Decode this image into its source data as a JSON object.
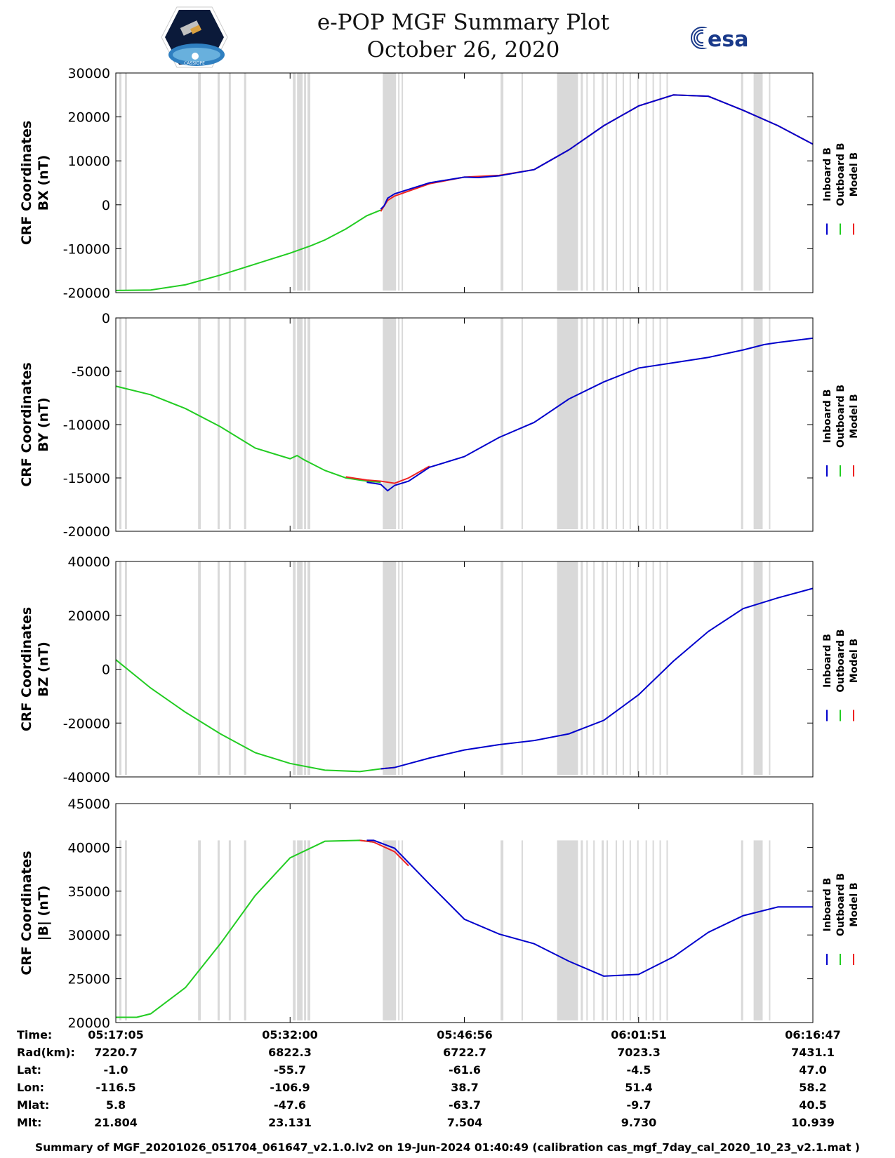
{
  "header": {
    "title_line1": "e-POP MGF Summary Plot",
    "title_line2": "October 26, 2020",
    "logo_left_text": "CASSIOPE",
    "logo_right_text": "esa"
  },
  "colors": {
    "inboard": "#0000cc",
    "outboard": "#22cc22",
    "model": "#ee2222",
    "shade": "#d9d9d9"
  },
  "chart_data": [
    {
      "type": "line",
      "ylabel_line1": "CRF Coordinates",
      "ylabel_line2": "BX (nT)",
      "ylim": [
        -20000,
        30000
      ],
      "yticks": [
        "30000",
        "20000",
        "10000",
        "0",
        "-10000",
        "-20000"
      ],
      "ytick_values": [
        30000,
        20000,
        10000,
        0,
        -10000,
        -20000
      ],
      "legend": [
        "Inboard B",
        "Outboard B",
        "Model B"
      ],
      "series": [
        {
          "name": "Outboard B",
          "color_key": "outboard",
          "x": [
            0,
            0.05,
            0.1,
            0.15,
            0.2,
            0.25,
            0.28,
            0.3,
            0.33,
            0.36,
            0.38
          ],
          "y": [
            -19500,
            -19400,
            -18200,
            -16000,
            -13500,
            -11000,
            -9300,
            -8000,
            -5500,
            -2500,
            -1200
          ]
        },
        {
          "name": "Model B",
          "color_key": "model",
          "x": [
            0.38,
            0.39,
            0.4,
            0.45,
            0.5,
            0.55,
            0.6,
            0.65,
            0.7,
            0.75,
            0.8,
            0.85,
            0.9,
            0.95,
            1.0
          ],
          "y": [
            -1500,
            1000,
            2000,
            4800,
            6300,
            6700,
            8000,
            12500,
            18000,
            22500,
            25000,
            24700,
            21500,
            18000,
            13800
          ]
        },
        {
          "name": "Inboard B",
          "color_key": "inboard",
          "x": [
            0.38,
            0.385,
            0.39,
            0.4,
            0.45,
            0.5,
            0.52,
            0.55,
            0.6,
            0.65,
            0.7,
            0.75,
            0.8,
            0.85,
            0.9,
            0.95,
            1.0
          ],
          "y": [
            -1000,
            -200,
            1500,
            2500,
            5000,
            6300,
            6200,
            6600,
            8000,
            12500,
            18000,
            22500,
            25000,
            24700,
            21500,
            18000,
            13800
          ]
        }
      ]
    },
    {
      "type": "line",
      "ylabel_line1": "CRF Coordinates",
      "ylabel_line2": "BY (nT)",
      "ylim": [
        -20000,
        0
      ],
      "yticks": [
        "0",
        "-5000",
        "-10000",
        "-15000",
        "-20000"
      ],
      "ytick_values": [
        0,
        -5000,
        -10000,
        -15000,
        -20000
      ],
      "legend": [
        "Inboard B",
        "Outboard B",
        "Model B"
      ],
      "series": [
        {
          "name": "Outboard B",
          "color_key": "outboard",
          "x": [
            0,
            0.05,
            0.1,
            0.15,
            0.2,
            0.25,
            0.26,
            0.27,
            0.3,
            0.33,
            0.36,
            0.38
          ],
          "y": [
            -6400,
            -7200,
            -8500,
            -10200,
            -12200,
            -13200,
            -12900,
            -13300,
            -14300,
            -15000,
            -15300,
            -15400
          ]
        },
        {
          "name": "Model B",
          "color_key": "model",
          "x": [
            0.33,
            0.36,
            0.38,
            0.4,
            0.42,
            0.45
          ],
          "y": [
            -14900,
            -15200,
            -15300,
            -15500,
            -15000,
            -13900
          ]
        },
        {
          "name": "Inboard B",
          "color_key": "inboard",
          "x": [
            0.36,
            0.38,
            0.39,
            0.4,
            0.42,
            0.45,
            0.5,
            0.55,
            0.6,
            0.65,
            0.7,
            0.75,
            0.8,
            0.85,
            0.9,
            0.93,
            0.95,
            1.0
          ],
          "y": [
            -15400,
            -15600,
            -16200,
            -15700,
            -15300,
            -14000,
            -13000,
            -11200,
            -9800,
            -7600,
            -6000,
            -4700,
            -4200,
            -3700,
            -3000,
            -2500,
            -2300,
            -1900
          ]
        }
      ]
    },
    {
      "type": "line",
      "ylabel_line1": "CRF Coordinates",
      "ylabel_line2": "BZ (nT)",
      "ylim": [
        -40000,
        40000
      ],
      "yticks": [
        "40000",
        "20000",
        "0",
        "-20000",
        "-40000"
      ],
      "ytick_values": [
        40000,
        20000,
        0,
        -20000,
        -40000
      ],
      "legend": [
        "Inboard B",
        "Outboard B",
        "Model B"
      ],
      "series": [
        {
          "name": "Outboard B",
          "color_key": "outboard",
          "x": [
            0,
            0.05,
            0.1,
            0.15,
            0.2,
            0.25,
            0.3,
            0.35,
            0.38
          ],
          "y": [
            3500,
            -7000,
            -16000,
            -24000,
            -31000,
            -35000,
            -37500,
            -38000,
            -37000
          ]
        },
        {
          "name": "Model B",
          "color_key": "model",
          "x": [
            0.38,
            0.4
          ],
          "y": [
            -37000,
            -36500
          ]
        },
        {
          "name": "Inboard B",
          "color_key": "inboard",
          "x": [
            0.38,
            0.4,
            0.45,
            0.5,
            0.55,
            0.6,
            0.65,
            0.7,
            0.75,
            0.8,
            0.85,
            0.9,
            0.95,
            1.0
          ],
          "y": [
            -37000,
            -36500,
            -33000,
            -30000,
            -28000,
            -26500,
            -24000,
            -19000,
            -9500,
            3000,
            14000,
            22500,
            26500,
            30000
          ]
        }
      ]
    },
    {
      "type": "line",
      "ylabel_line1": "CRF Coordinates",
      "ylabel_line2": "|B| (nT)",
      "ylim": [
        20000,
        45000
      ],
      "yticks": [
        "45000",
        "40000",
        "35000",
        "30000",
        "25000",
        "20000"
      ],
      "ytick_values": [
        45000,
        40000,
        35000,
        30000,
        25000,
        20000
      ],
      "legend": [
        "Inboard B",
        "Outboard B",
        "Model B"
      ],
      "series": [
        {
          "name": "Outboard B",
          "color_key": "outboard",
          "x": [
            0,
            0.03,
            0.05,
            0.1,
            0.15,
            0.2,
            0.25,
            0.3,
            0.35,
            0.37
          ],
          "y": [
            20600,
            20600,
            21000,
            24000,
            29000,
            34500,
            38800,
            40700,
            40800,
            40600
          ]
        },
        {
          "name": "Model B",
          "color_key": "model",
          "x": [
            0.35,
            0.37,
            0.4,
            0.42
          ],
          "y": [
            40800,
            40600,
            39500,
            37900
          ]
        },
        {
          "name": "Inboard B",
          "color_key": "inboard",
          "x": [
            0.36,
            0.37,
            0.4,
            0.45,
            0.5,
            0.55,
            0.6,
            0.65,
            0.7,
            0.75,
            0.8,
            0.85,
            0.9,
            0.95,
            1.0
          ],
          "y": [
            40800,
            40800,
            39900,
            35800,
            31800,
            30100,
            29000,
            27000,
            25300,
            25500,
            27500,
            30300,
            32200,
            33200,
            33200
          ]
        }
      ]
    }
  ],
  "time_table": {
    "labels": [
      "Time:",
      "Rad(km):",
      "Lat:",
      "Lon:",
      "Mlat:",
      "Mlt:"
    ],
    "columns": [
      {
        "time": "05:17:05",
        "rad": "7220.7",
        "lat": "-1.0",
        "lon": "-116.5",
        "mlat": "5.8",
        "mlt": "21.804"
      },
      {
        "time": "05:32:00",
        "rad": "6822.3",
        "lat": "-55.7",
        "lon": "-106.9",
        "mlat": "-47.6",
        "mlt": "23.131"
      },
      {
        "time": "05:46:56",
        "rad": "6722.7",
        "lat": "-61.6",
        "lon": "38.7",
        "mlat": "-63.7",
        "mlt": "7.504"
      },
      {
        "time": "06:01:51",
        "rad": "7023.3",
        "lat": "-4.5",
        "lon": "51.4",
        "mlat": "-9.7",
        "mlt": "9.730"
      },
      {
        "time": "06:16:47",
        "rad": "7431.1",
        "lat": "47.0",
        "lon": "58.2",
        "mlat": "40.5",
        "mlt": "10.939"
      }
    ]
  },
  "summary": "Summary of MGF_20201026_051704_061647_v2.1.0.lv2 on 19-Jun-2024 01:40:49 (calibration cas_mgf_7day_cal_2020_10_23_v2.1.mat )"
}
